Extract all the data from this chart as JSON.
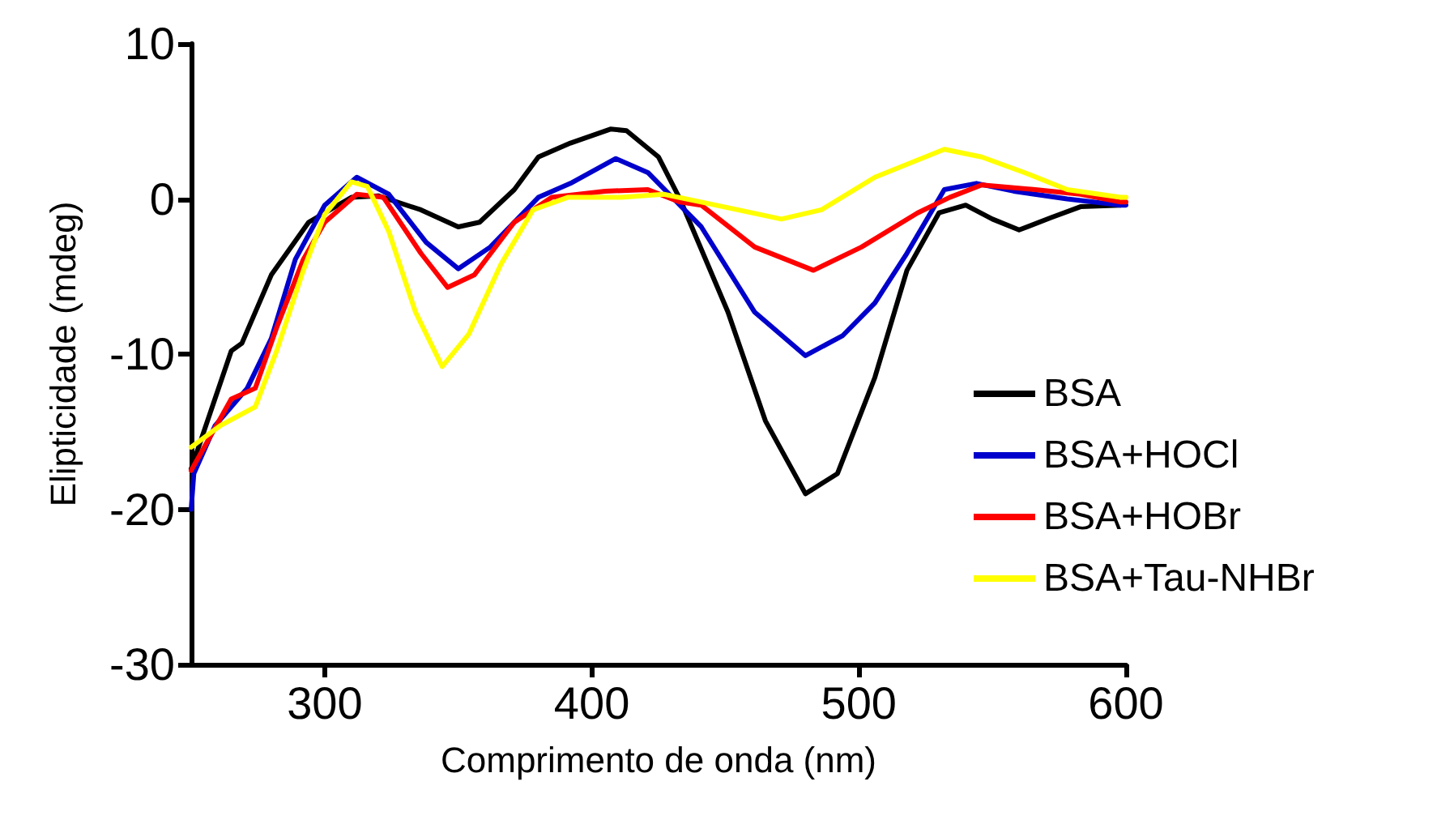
{
  "chart_data": {
    "type": "line",
    "xlabel": "Comprimento de onda (nm)",
    "ylabel": "Elipticidade (mdeg)",
    "xlim": [
      250,
      600
    ],
    "xticks": [
      300,
      400,
      500,
      600
    ],
    "ylim": [
      -30,
      10
    ],
    "yticks": [
      -30,
      -20,
      -10,
      0,
      10
    ],
    "grid": false,
    "legend": "right",
    "marker": "none",
    "line_style": "solid",
    "series": [
      {
        "name": "BSA",
        "color": "#000000",
        "x": [
          250,
          265,
          269,
          280,
          294,
          310,
          320,
          336,
          350,
          358,
          371,
          380,
          392,
          407,
          413,
          425,
          433,
          451,
          465,
          480,
          492,
          506,
          518,
          530,
          540,
          550,
          560,
          572,
          583,
          598
        ],
        "values": [
          -17.4,
          -9.8,
          -9.3,
          -4.9,
          -1.5,
          0.1,
          0.2,
          -0.7,
          -1.8,
          -1.5,
          0.6,
          2.7,
          3.6,
          4.5,
          4.4,
          2.7,
          0,
          -7.3,
          -14.3,
          -19,
          -17.7,
          -11.5,
          -4.6,
          -0.9,
          -0.4,
          -1.3,
          -2.0,
          -1.2,
          -0.5,
          -0.4
        ]
      },
      {
        "name": "BSA+HOCl",
        "color": "#0000cc",
        "x": [
          250,
          251,
          259,
          271,
          280,
          289,
          300,
          312,
          324,
          338,
          350,
          362,
          380,
          392,
          409,
          421,
          433,
          441,
          461,
          480,
          494,
          506,
          518,
          532,
          544,
          558,
          578,
          598,
          600
        ],
        "values": [
          -20,
          -17.7,
          -14.6,
          -12.2,
          -9,
          -3.9,
          -0.4,
          1.4,
          0.3,
          -2.8,
          -4.5,
          -3.1,
          0.1,
          1.0,
          2.6,
          1.7,
          -0.4,
          -1.8,
          -7.3,
          -10.1,
          -8.8,
          -6.7,
          -3.5,
          0.6,
          1.0,
          0.5,
          0,
          -0.4,
          -0.4
        ]
      },
      {
        "name": "BSA+HOBr",
        "color": "#ff0000",
        "x": [
          250,
          265,
          274,
          282,
          292,
          300,
          312,
          322,
          336,
          346,
          356,
          371,
          385,
          405,
          421,
          433,
          441,
          461,
          483,
          501,
          522,
          534,
          546,
          566,
          583,
          598,
          600
        ],
        "values": [
          -17.5,
          -12.9,
          -12.2,
          -8.3,
          -3.9,
          -1.5,
          0.3,
          0.1,
          -3.5,
          -5.7,
          -4.9,
          -1.5,
          0.1,
          0.5,
          0.6,
          -0.2,
          -0.4,
          -3.1,
          -4.6,
          -3.1,
          -0.9,
          0.1,
          0.9,
          0.6,
          0.3,
          -0.2,
          -0.2
        ]
      },
      {
        "name": "BSA+Tau-NHBr",
        "color": "#ffff00",
        "x": [
          250,
          261,
          274,
          282,
          292,
          300,
          310,
          316,
          324,
          334,
          344,
          354,
          366,
          378,
          391,
          411,
          427,
          441,
          471,
          486,
          506,
          532,
          546,
          562,
          578,
          598,
          600
        ],
        "values": [
          -16,
          -14.6,
          -13.4,
          -9.8,
          -4.6,
          -1.0,
          1.1,
          0.8,
          -2.1,
          -7.3,
          -10.8,
          -8.7,
          -4.2,
          -0.7,
          0.1,
          0.1,
          0.3,
          -0.2,
          -1.3,
          -0.7,
          1.4,
          3.2,
          2.7,
          1.7,
          0.6,
          0.1,
          0.1
        ]
      }
    ]
  }
}
